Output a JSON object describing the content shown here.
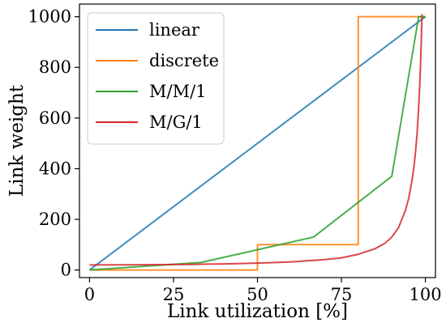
{
  "chart_data": {
    "type": "line",
    "xlabel": "Link utilization [%]",
    "ylabel": "Link weight",
    "xlim": [
      -3,
      103
    ],
    "ylim": [
      -30,
      1050
    ],
    "xticks": [
      0,
      25,
      50,
      75,
      100
    ],
    "yticks": [
      0,
      200,
      400,
      600,
      800,
      1000
    ],
    "grid": false,
    "legend_position": "top-left",
    "series": [
      {
        "name": "linear",
        "color": "#1f77b4",
        "x": [
          0,
          100
        ],
        "y": [
          0,
          1000
        ]
      },
      {
        "name": "discrete",
        "color": "#ff7f0e",
        "x": [
          0,
          50,
          50,
          80,
          80,
          100
        ],
        "y": [
          0,
          0,
          100,
          100,
          1000,
          1000
        ]
      },
      {
        "name": "M/M/1",
        "color": "#2ca02c",
        "x": [
          0,
          33.3,
          66.7,
          90,
          98,
          100
        ],
        "y": [
          0,
          30,
          130,
          370,
          1000,
          1000
        ]
      },
      {
        "name": "M/G/1",
        "color": "#d62728",
        "x": [
          0,
          10,
          20,
          30,
          40,
          50,
          60,
          70,
          75,
          80,
          85,
          88,
          90,
          92,
          94,
          95,
          96,
          96.5,
          97,
          97.5,
          98,
          98.3,
          98.6,
          98.8,
          99
        ],
        "y": [
          20,
          20.5,
          21,
          22,
          24,
          27,
          32,
          41,
          48,
          62,
          84,
          106,
          130,
          167,
          233,
          281,
          352,
          398,
          457,
          533,
          642,
          724,
          825,
          918,
          1010
        ]
      }
    ]
  }
}
